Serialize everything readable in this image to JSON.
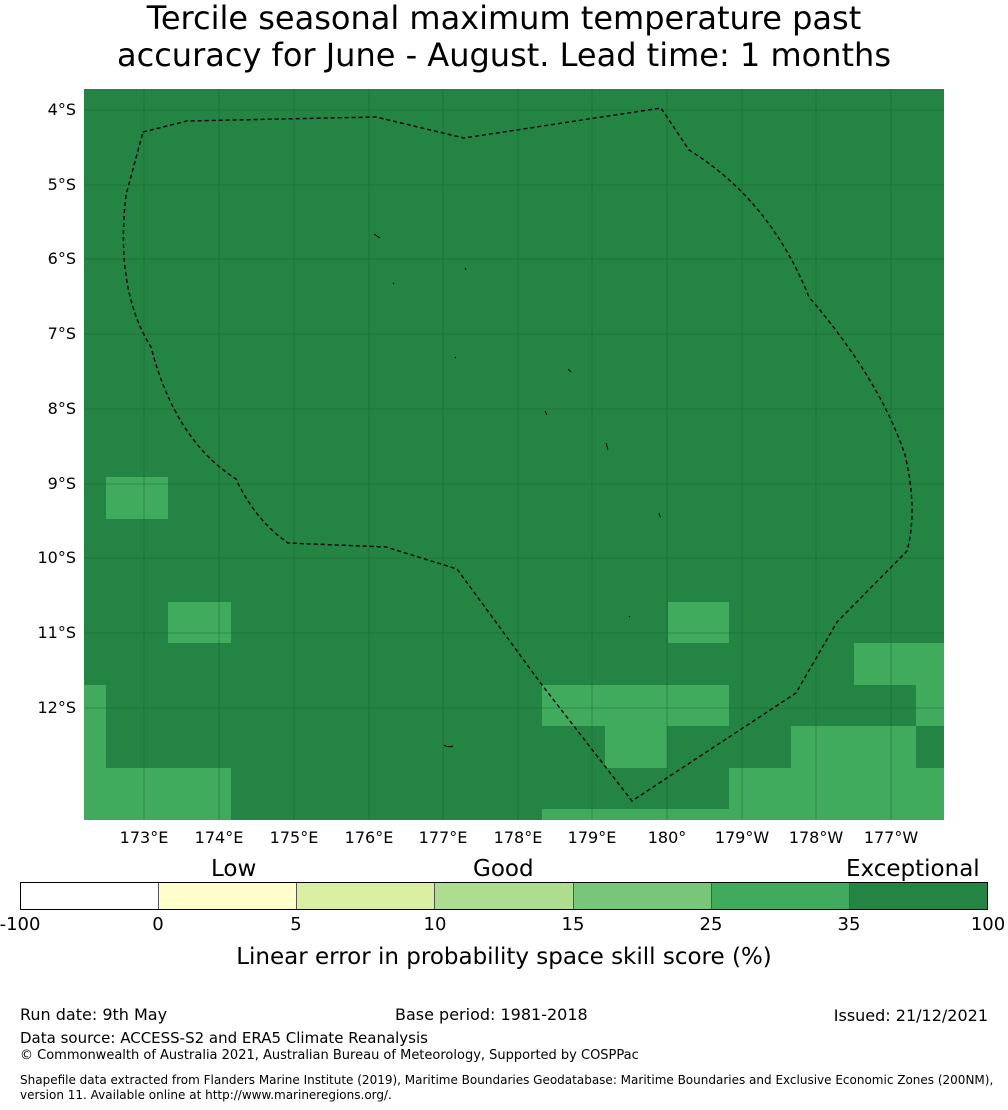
{
  "title": {
    "line1": "Tercile seasonal maximum temperature past",
    "line2": "accuracy for June - August. Lead time: 1 months"
  },
  "map": {
    "lat_labels": [
      "4°S",
      "5°S",
      "6°S",
      "7°S",
      "8°S",
      "9°S",
      "10°S",
      "11°S",
      "12°S"
    ],
    "lon_labels": [
      "173°E",
      "174°E",
      "175°E",
      "176°E",
      "177°E",
      "178°E",
      "179°E",
      "180°",
      "179°W",
      "178°W",
      "177°W"
    ],
    "colors": {
      "exceptional": "#238443",
      "level_25_35": "#41ab5d",
      "gridline": "#1a5c2e",
      "boundary": "#000000"
    },
    "background_class": "exceptional"
  },
  "colorbar": {
    "categories": [
      "Low",
      "Good",
      "Exceptional"
    ],
    "ticks": [
      "-100",
      "0",
      "5",
      "10",
      "15",
      "25",
      "35",
      "100"
    ],
    "colors": [
      "#ffffff",
      "#ffffcc",
      "#d9f0a3",
      "#addd8e",
      "#78c679",
      "#41ab5d",
      "#238443"
    ],
    "label": "Linear error in probability space skill score (%)"
  },
  "footer": {
    "run_date": "Run date: 9th May",
    "base_period": "Base period: 1981-2018",
    "issued": "Issued: 21/12/2021",
    "data_source": "Data source: ACCESS-S2 and ERA5 Climate Reanalysis",
    "copyright": "© Commonwealth of Australia 2021, Australian Bureau of Meteorology, Supported by COSPPac",
    "shapefile": "Shapefile data extracted from Flanders Marine Institute (2019), Maritime Boundaries Geodatabase: Maritime Boundaries and Exclusive Economic Zones (200NM), version 11. Available online at http://www.marineregions.org/."
  }
}
